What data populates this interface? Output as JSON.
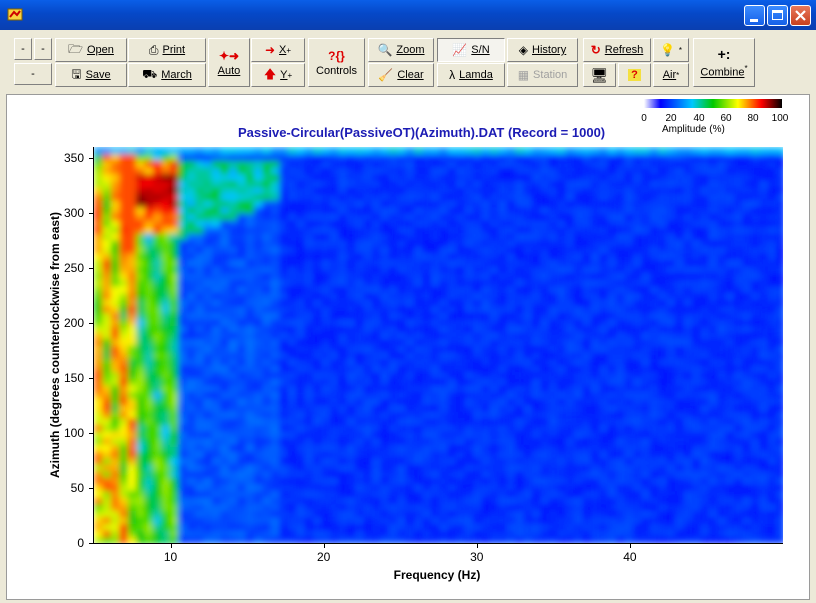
{
  "window": {
    "controls": [
      "minimize",
      "maximize",
      "close"
    ]
  },
  "toolbar": {
    "buttons": [
      {
        "id": "small-1",
        "label": "-"
      },
      {
        "id": "small-2",
        "label": "-"
      },
      {
        "id": "small-3",
        "label": "-"
      },
      {
        "id": "open",
        "label": "Open",
        "icon": "open-icon"
      },
      {
        "id": "save",
        "label": "Save",
        "icon": "save-icon"
      },
      {
        "id": "print",
        "label": "Print",
        "icon": "print-icon"
      },
      {
        "id": "march",
        "label": "March",
        "icon": "march-icon"
      },
      {
        "id": "auto",
        "label": "Auto",
        "icon": "auto-arrows-icon"
      },
      {
        "id": "x",
        "label": "X",
        "superscript": "+",
        "icon": "x-arrow-icon"
      },
      {
        "id": "y",
        "label": "Y",
        "superscript": "+",
        "icon": "y-arrow-icon"
      },
      {
        "id": "controls",
        "label": "Controls",
        "icon": "controls-icon"
      },
      {
        "id": "zoom",
        "label": "Zoom",
        "icon": "zoom-icon"
      },
      {
        "id": "clear",
        "label": "Clear",
        "icon": "clear-icon"
      },
      {
        "id": "sn",
        "label": "S/N",
        "icon": "sn-icon",
        "pressed": true
      },
      {
        "id": "lamda",
        "label": "Lamda",
        "icon": "lambda-icon"
      },
      {
        "id": "history",
        "label": "History",
        "icon": "history-icon"
      },
      {
        "id": "station",
        "label": "Station",
        "icon": "station-icon",
        "disabled": true
      },
      {
        "id": "refresh",
        "label": "Refresh",
        "icon": "refresh-icon"
      },
      {
        "id": "monitor",
        "label": "",
        "icon": "monitor-icon"
      },
      {
        "id": "bulb",
        "label": "*",
        "icon": "lightbulb-icon"
      },
      {
        "id": "help",
        "label": "",
        "icon": "help-icon"
      },
      {
        "id": "air",
        "label": "Air",
        "superscript": "*",
        "icon": ""
      },
      {
        "id": "combine",
        "label": "Combine",
        "superscript": "*",
        "icon": "combine-icon"
      }
    ]
  },
  "colorbar": {
    "ticks": [
      "0",
      "20",
      "40",
      "60",
      "80",
      "100"
    ],
    "label": "Amplitude (%)",
    "colors": [
      "#FFFFFF",
      "#0000FF",
      "#00C8FF",
      "#00C800",
      "#FFFF00",
      "#FF0000",
      "#000000"
    ]
  },
  "chart_data": {
    "type": "heatmap",
    "title": "Passive-Circular(PassiveOT)(Azimuth).DAT (Record = 1000)",
    "xlabel": "Frequency (Hz)",
    "ylabel": "Azimuth (degrees counterclockwise from east)",
    "xlim": [
      5,
      50
    ],
    "ylim": [
      0,
      360
    ],
    "xticks": [
      10,
      20,
      30,
      40
    ],
    "yticks": [
      0,
      50,
      100,
      150,
      200,
      250,
      300,
      350
    ],
    "colorscale": "white-blue-cyan-green-yellow-red-black",
    "value_range": [
      0,
      100
    ],
    "features": [
      {
        "region": "x 5-7 Hz, y 0-360",
        "amplitude": "high (green-yellow-red)"
      },
      {
        "region": "x 6-10 Hz, y 280-350",
        "amplitude": "peak (red, ~100%)"
      },
      {
        "region": "x 10-17 Hz, y 270-340",
        "amplitude": "moderate (cyan-green)"
      },
      {
        "region": "x 12-50 Hz",
        "amplitude": "low (blue, ~10-20%)"
      }
    ]
  }
}
